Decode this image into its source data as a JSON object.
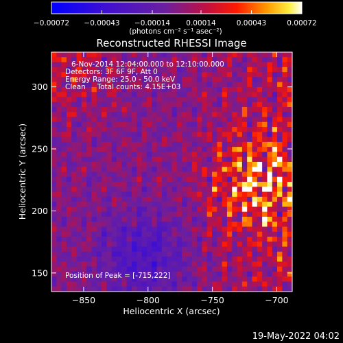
{
  "footer_timestamp": "19-May-2022 04:02",
  "info": {
    "time_range": "6-Nov-2014 12:04:00.000 to 12:10:00.000",
    "detectors": "Detectors: 3F 6F 9F, Att 0",
    "energy": "Energy Range: 25.0 - 50.0 keV",
    "clean": "Clean     Total counts: 4.15E+03",
    "peak": "Position of Peak = [-715,222]"
  },
  "colors": {
    "background": "#000000",
    "colorbar_low": "#0000ff",
    "colorbar_mid": "#6a1fa0",
    "colorbar_high_red": "#ff1a00",
    "colorbar_top": "#ffffff"
  },
  "chart_data": {
    "type": "heatmap",
    "title": "Reconstructed RHESSI Image",
    "xlabel": "Heliocentric X (arcsec)",
    "ylabel": "Heliocentric Y (arcsec)",
    "xlim": [
      -875,
      -688
    ],
    "ylim": [
      135,
      328
    ],
    "x_ticks": [
      -850,
      -800,
      -750,
      -700
    ],
    "y_ticks": [
      150,
      200,
      250,
      300
    ],
    "x_tick_labels": [
      "−850",
      "−800",
      "−750",
      "−700"
    ],
    "y_tick_labels": [
      "150",
      "200",
      "250",
      "300"
    ],
    "colorbar": {
      "min": -0.00072,
      "max": 0.00072,
      "ticks": [
        -0.00072,
        -0.00043,
        -0.00014,
        0.00014,
        0.00043,
        0.00072
      ],
      "tick_labels": [
        "−0.00072",
        "−0.00043",
        "−0.00014",
        "0.00014",
        "0.00043",
        "0.00072"
      ],
      "units_label": "(photons cm⁻² s⁻¹ asec⁻²)"
    },
    "peak": {
      "x": -715,
      "y": 222
    },
    "grid": false
  }
}
